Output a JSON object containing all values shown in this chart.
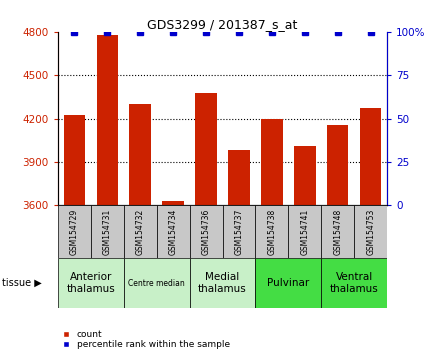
{
  "title": "GDS3299 / 201387_s_at",
  "samples": [
    "GSM154729",
    "GSM154731",
    "GSM154732",
    "GSM154734",
    "GSM154736",
    "GSM154737",
    "GSM154738",
    "GSM154741",
    "GSM154748",
    "GSM154753"
  ],
  "counts": [
    4225,
    4775,
    4300,
    3630,
    4380,
    3980,
    4195,
    4010,
    4155,
    4270
  ],
  "percentiles": [
    100,
    100,
    100,
    100,
    100,
    100,
    100,
    100,
    100,
    100
  ],
  "ylim_left": [
    3600,
    4800
  ],
  "ylim_right": [
    0,
    100
  ],
  "yticks_left": [
    3600,
    3900,
    4200,
    4500,
    4800
  ],
  "yticks_right": [
    0,
    25,
    50,
    75,
    100
  ],
  "ytick_right_labels": [
    "0",
    "25",
    "50",
    "75",
    "100%"
  ],
  "bar_color": "#cc2200",
  "dot_color": "#0000cc",
  "sample_box_color": "#c8c8c8",
  "groups": [
    {
      "label": "Anterior\nthalamus",
      "start": 0,
      "end": 2,
      "color": "#c8f0c8",
      "fontsize": 7.5
    },
    {
      "label": "Centre median",
      "start": 2,
      "end": 4,
      "color": "#c8f0c8",
      "fontsize": 5.5
    },
    {
      "label": "Medial\nthalamus",
      "start": 4,
      "end": 6,
      "color": "#c8f0c8",
      "fontsize": 7.5
    },
    {
      "label": "Pulvinar",
      "start": 6,
      "end": 8,
      "color": "#44dd44",
      "fontsize": 7.5
    },
    {
      "label": "Ventral\nthalamus",
      "start": 8,
      "end": 10,
      "color": "#44dd44",
      "fontsize": 7.5
    }
  ],
  "legend_items": [
    {
      "label": "count",
      "color": "#cc2200"
    },
    {
      "label": "percentile rank within the sample",
      "color": "#0000cc"
    }
  ]
}
